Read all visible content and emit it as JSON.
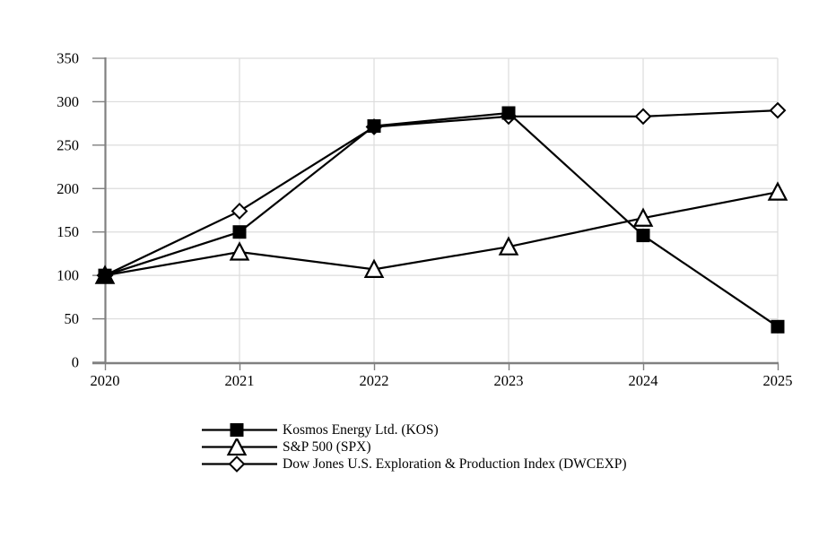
{
  "page": {
    "background": "#ffffff"
  },
  "chart_data": {
    "type": "line",
    "title": "",
    "xlabel": "",
    "ylabel": "",
    "x_categories": [
      "2020",
      "2021",
      "2022",
      "2023",
      "2024",
      "2025"
    ],
    "ylim": [
      0,
      350
    ],
    "ytick_step": 50,
    "ytick_labels": [
      "0",
      "50",
      "100",
      "150",
      "200",
      "250",
      "300",
      "350"
    ],
    "grid": true,
    "legend_position": "bottom-left",
    "series": [
      {
        "name": "Kosmos Energy Ltd. (KOS)",
        "marker": "filled-square",
        "color": "#000000",
        "values": [
          100,
          150,
          272,
          287,
          146,
          41
        ]
      },
      {
        "name": "S&P 500 (SPX)",
        "marker": "open-triangle",
        "color": "#000000",
        "values": [
          100,
          127,
          107,
          133,
          166,
          196
        ]
      },
      {
        "name": "Dow Jones U.S. Exploration & Production Index (DWCEXP)",
        "marker": "open-diamond",
        "color": "#000000",
        "values": [
          100,
          174,
          271,
          283,
          283,
          290
        ]
      }
    ],
    "colors": {
      "gridline": "#dcdcdc",
      "axis": "#808080",
      "line": "#000000",
      "open_marker_fill": "#ffffff"
    }
  }
}
